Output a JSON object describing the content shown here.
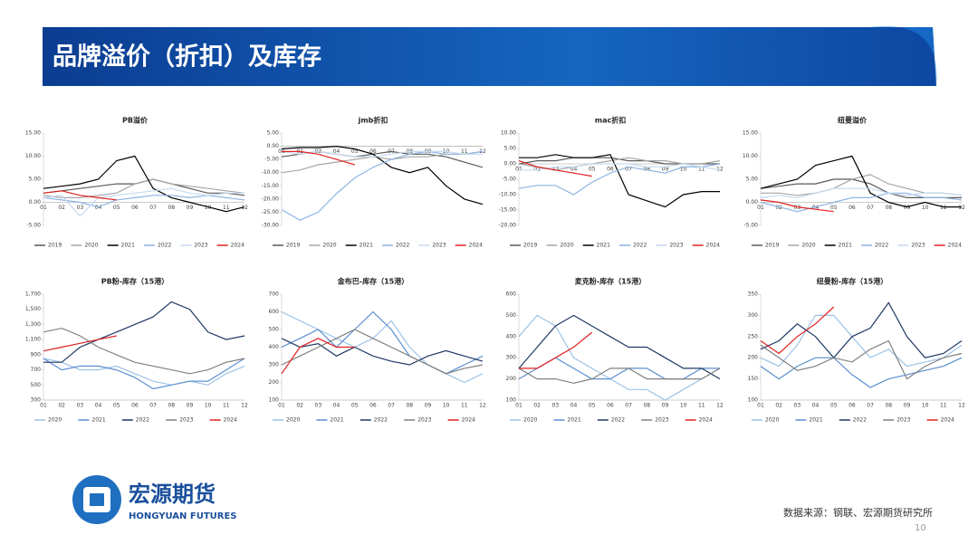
{
  "header": {
    "title": "品牌溢价（折扣）及库存"
  },
  "logo": {
    "name": "宏源期货",
    "english": "HONGYUAN FUTURES"
  },
  "footer": {
    "source": "数据来源：钢联、宏源期货研究所",
    "page": "10"
  },
  "chart_data": [
    {
      "type": "line",
      "title": "PB溢价",
      "categories": [
        "01",
        "02",
        "03",
        "04",
        "05",
        "06",
        "07",
        "08",
        "09",
        "10",
        "11",
        "12"
      ],
      "ylim": [
        -5,
        15
      ],
      "yticks": [
        {
          "value": -5,
          "label": "-5.00"
        },
        {
          "value": 0,
          "label": "0.00"
        },
        {
          "value": 5,
          "label": "5.00"
        },
        {
          "value": 10,
          "label": "10.00"
        },
        {
          "value": 15,
          "label": "15.00"
        }
      ],
      "series": [
        {
          "name": "2019",
          "color": "#595959",
          "values": [
            2,
            2.5,
            3,
            3.5,
            4,
            4,
            5,
            4,
            3,
            2,
            2,
            1.5
          ]
        },
        {
          "name": "2020",
          "color": "#a6a6a6",
          "values": [
            1.5,
            1,
            1,
            1.5,
            2,
            4,
            5,
            4,
            3.5,
            3,
            2.5,
            2
          ]
        },
        {
          "name": "2021",
          "color": "#000000",
          "values": [
            3,
            3.5,
            4,
            5,
            9,
            10,
            3,
            1,
            0,
            -1,
            -2,
            -1
          ]
        },
        {
          "name": "2022",
          "color": "#8eb4e3",
          "values": [
            1,
            0.5,
            0,
            -1,
            0.5,
            1,
            1.5,
            1.5,
            1,
            1.5,
            1,
            0.5
          ]
        },
        {
          "name": "2023",
          "color": "#c5d9f1",
          "values": [
            1,
            1.5,
            -3,
            1,
            1.5,
            2,
            2.5,
            3,
            2,
            1.5,
            2,
            2
          ]
        },
        {
          "name": "2024",
          "color": "#e02020",
          "values": [
            2,
            2.5,
            1.5,
            1,
            0.5,
            null,
            null,
            null,
            null,
            null,
            null,
            null
          ]
        }
      ]
    },
    {
      "type": "line",
      "title": "jmb折扣",
      "categories": [
        "01",
        "02",
        "03",
        "04",
        "05",
        "06",
        "07",
        "08",
        "09",
        "10",
        "11",
        "12"
      ],
      "ylim": [
        -30,
        5
      ],
      "yticks": [
        {
          "value": -30,
          "label": "-30.00"
        },
        {
          "value": -25,
          "label": "-25.00"
        },
        {
          "value": -20,
          "label": "-20.00"
        },
        {
          "value": -15,
          "label": "-15.00"
        },
        {
          "value": -10,
          "label": "-10.00"
        },
        {
          "value": -5,
          "label": "-5.00"
        },
        {
          "value": 0,
          "label": "0.00"
        },
        {
          "value": 5,
          "label": "5.00"
        }
      ],
      "series": [
        {
          "name": "2019",
          "color": "#595959",
          "values": [
            -4,
            -3,
            -2,
            -3,
            -4,
            -3,
            -2,
            -3,
            -3,
            -4,
            -6,
            -8
          ]
        },
        {
          "name": "2020",
          "color": "#a6a6a6",
          "values": [
            -10,
            -9,
            -7,
            -6,
            -5,
            -4,
            -5,
            -4,
            -4,
            -3,
            -3,
            -2
          ]
        },
        {
          "name": "2021",
          "color": "#000000",
          "values": [
            -1,
            -0.5,
            -0.5,
            0,
            -1,
            -3,
            -8,
            -10,
            -8,
            -15,
            -20,
            -22
          ]
        },
        {
          "name": "2022",
          "color": "#8eb4e3",
          "values": [
            -24,
            -28,
            -25,
            -18,
            -12,
            -8,
            -5,
            -3,
            -2,
            -3,
            -3,
            -2
          ]
        },
        {
          "name": "2023",
          "color": "#c5d9f1",
          "values": [
            -2,
            -3,
            -2,
            -3,
            -4,
            -4,
            -3,
            -2,
            -2,
            -2,
            -3,
            -3
          ]
        },
        {
          "name": "2024",
          "color": "#e02020",
          "values": [
            -2,
            -2,
            -3,
            -5,
            -7,
            null,
            null,
            null,
            null,
            null,
            null,
            null
          ]
        }
      ]
    },
    {
      "type": "line",
      "title": "mac折扣",
      "categories": [
        "01",
        "02",
        "03",
        "04",
        "05",
        "06",
        "07",
        "08",
        "09",
        "10",
        "11",
        "12"
      ],
      "ylim": [
        -20,
        10
      ],
      "yticks": [
        {
          "value": -20,
          "label": "-20.00"
        },
        {
          "value": -15,
          "label": "-15.00"
        },
        {
          "value": -10,
          "label": "-10.00"
        },
        {
          "value": -5,
          "label": "-5.00"
        },
        {
          "value": 0,
          "label": "0.00"
        },
        {
          "value": 5,
          "label": "5.00"
        },
        {
          "value": 10,
          "label": "10.00"
        }
      ],
      "series": [
        {
          "name": "2019",
          "color": "#595959",
          "values": [
            0,
            1,
            1,
            2,
            2,
            2,
            1,
            1,
            0,
            0,
            0,
            0
          ]
        },
        {
          "name": "2020",
          "color": "#a6a6a6",
          "values": [
            0,
            -1,
            -2,
            -1,
            0,
            1,
            2,
            1,
            1,
            0,
            0,
            1
          ]
        },
        {
          "name": "2021",
          "color": "#000000",
          "values": [
            2,
            2,
            3,
            2,
            2,
            3,
            -10,
            -12,
            -14,
            -10,
            -9,
            -9
          ]
        },
        {
          "name": "2022",
          "color": "#8eb4e3",
          "values": [
            -8,
            -7,
            -7,
            -10,
            -6,
            -3,
            -1,
            -2,
            -3,
            -1,
            -1,
            0
          ]
        },
        {
          "name": "2023",
          "color": "#c5d9f1",
          "values": [
            -2,
            -2,
            -1,
            -1,
            0,
            0,
            0,
            -1,
            -1,
            0,
            -1,
            -2
          ]
        },
        {
          "name": "2024",
          "color": "#e02020",
          "values": [
            1,
            -1,
            -2,
            -3,
            -4,
            null,
            null,
            null,
            null,
            null,
            null,
            null
          ]
        }
      ]
    },
    {
      "type": "line",
      "title": "纽曼溢价",
      "categories": [
        "01",
        "02",
        "03",
        "04",
        "05",
        "06",
        "07",
        "08",
        "09",
        "10",
        "11",
        "12"
      ],
      "ylim": [
        -5,
        15
      ],
      "yticks": [
        {
          "value": -5,
          "label": "-5.00"
        },
        {
          "value": 0,
          "label": "0.00"
        },
        {
          "value": 5,
          "label": "5.00"
        },
        {
          "value": 10,
          "label": "10.00"
        },
        {
          "value": 15,
          "label": "15.00"
        }
      ],
      "series": [
        {
          "name": "2019",
          "color": "#595959",
          "values": [
            3,
            3.5,
            4,
            4,
            5,
            5,
            4,
            2,
            1,
            1,
            1,
            1
          ]
        },
        {
          "name": "2020",
          "color": "#a6a6a6",
          "values": [
            2,
            2,
            1.5,
            2,
            3,
            5,
            6,
            4,
            3,
            2,
            2,
            1.5
          ]
        },
        {
          "name": "2021",
          "color": "#000000",
          "values": [
            3,
            4,
            5,
            8,
            9,
            10,
            2,
            0,
            -1,
            0,
            -1,
            -1
          ]
        },
        {
          "name": "2022",
          "color": "#8eb4e3",
          "values": [
            0,
            -1,
            -2,
            -1,
            0,
            1,
            1,
            2,
            2,
            1,
            1,
            0.5
          ]
        },
        {
          "name": "2023",
          "color": "#c5d9f1",
          "values": [
            1,
            1.5,
            1,
            2,
            3,
            3,
            3,
            2,
            1.5,
            2,
            2,
            1.5
          ]
        },
        {
          "name": "2024",
          "color": "#e02020",
          "values": [
            0.5,
            0,
            -1,
            -1.5,
            -2,
            null,
            null,
            null,
            null,
            null,
            null,
            null
          ]
        }
      ]
    },
    {
      "type": "line",
      "title": "PB粉-库存（15港）",
      "categories": [
        "01",
        "02",
        "03",
        "04",
        "05",
        "06",
        "07",
        "08",
        "09",
        "10",
        "11",
        "12"
      ],
      "ylim": [
        300,
        1700
      ],
      "yticks": [
        300,
        500,
        700,
        900,
        {
          "value": 1100,
          "label": "1,100"
        },
        {
          "value": 1300,
          "label": "1,300"
        },
        {
          "value": 1500,
          "label": "1,500"
        },
        {
          "value": 1700,
          "label": "1,700"
        }
      ],
      "series": [
        {
          "name": "2020",
          "color": "#9dc3e6",
          "values": [
            850,
            800,
            700,
            700,
            750,
            650,
            550,
            500,
            550,
            500,
            650,
            750
          ]
        },
        {
          "name": "2021",
          "color": "#5b8fd0",
          "values": [
            850,
            700,
            750,
            750,
            700,
            600,
            450,
            500,
            550,
            550,
            700,
            850
          ]
        },
        {
          "name": "2022",
          "color": "#1f3864",
          "values": [
            800,
            800,
            1000,
            1100,
            1200,
            1300,
            1400,
            1600,
            1500,
            1200,
            1100,
            1150
          ]
        },
        {
          "name": "2023",
          "color": "#808080",
          "values": [
            1200,
            1250,
            1150,
            1000,
            900,
            800,
            750,
            700,
            650,
            700,
            800,
            850
          ]
        },
        {
          "name": "2024",
          "color": "#e02020",
          "values": [
            950,
            1000,
            1050,
            1100,
            1150,
            null,
            null,
            null,
            null,
            null,
            null,
            null
          ]
        }
      ]
    },
    {
      "type": "line",
      "title": "金布巴-库存（15港）",
      "categories": [
        "01",
        "02",
        "03",
        "04",
        "05",
        "06",
        "07",
        "08",
        "09",
        "10",
        "11",
        "12"
      ],
      "ylim": [
        100,
        700
      ],
      "yticks": [
        100,
        200,
        300,
        400,
        500,
        600,
        700
      ],
      "series": [
        {
          "name": "2020",
          "color": "#9dc3e6",
          "values": [
            600,
            550,
            500,
            450,
            400,
            450,
            550,
            400,
            300,
            250,
            200,
            250
          ]
        },
        {
          "name": "2021",
          "color": "#5b8fd0",
          "values": [
            400,
            450,
            500,
            400,
            500,
            600,
            500,
            350,
            300,
            250,
            300,
            350
          ]
        },
        {
          "name": "2022",
          "color": "#1f3864",
          "values": [
            450,
            400,
            420,
            350,
            400,
            350,
            320,
            300,
            350,
            380,
            350,
            320
          ]
        },
        {
          "name": "2023",
          "color": "#808080",
          "values": [
            300,
            350,
            400,
            450,
            500,
            450,
            400,
            350,
            300,
            250,
            280,
            300
          ]
        },
        {
          "name": "2024",
          "color": "#e02020",
          "values": [
            250,
            400,
            450,
            400,
            400,
            null,
            null,
            null,
            null,
            null,
            null,
            null
          ]
        }
      ]
    },
    {
      "type": "line",
      "title": "麦克粉-库存（15港）",
      "categories": [
        "01",
        "02",
        "03",
        "04",
        "05",
        "06",
        "07",
        "08",
        "09",
        "10",
        "11",
        "12"
      ],
      "ylim": [
        100,
        600
      ],
      "yticks": [
        100,
        200,
        300,
        400,
        500,
        600
      ],
      "series": [
        {
          "name": "2020",
          "color": "#9dc3e6",
          "values": [
            400,
            500,
            450,
            300,
            250,
            200,
            150,
            150,
            100,
            150,
            200,
            250
          ]
        },
        {
          "name": "2021",
          "color": "#5b8fd0",
          "values": [
            200,
            250,
            300,
            250,
            200,
            200,
            250,
            250,
            200,
            200,
            250,
            250
          ]
        },
        {
          "name": "2022",
          "color": "#1f3864",
          "values": [
            250,
            350,
            450,
            500,
            450,
            400,
            350,
            350,
            300,
            250,
            250,
            200
          ]
        },
        {
          "name": "2023",
          "color": "#808080",
          "values": [
            250,
            200,
            200,
            180,
            200,
            250,
            250,
            200,
            200,
            200,
            200,
            250
          ]
        },
        {
          "name": "2024",
          "color": "#e02020",
          "values": [
            250,
            250,
            300,
            350,
            420,
            null,
            null,
            null,
            null,
            null,
            null,
            null
          ]
        }
      ]
    },
    {
      "type": "line",
      "title": "纽曼粉-库存（15港）",
      "categories": [
        "01",
        "02",
        "03",
        "04",
        "05",
        "06",
        "07",
        "08",
        "09",
        "10",
        "11",
        "12"
      ],
      "ylim": [
        100,
        350
      ],
      "yticks": [
        100,
        150,
        200,
        250,
        300,
        350
      ],
      "series": [
        {
          "name": "2020",
          "color": "#9dc3e6",
          "values": [
            200,
            180,
            230,
            300,
            300,
            250,
            200,
            220,
            180,
            190,
            200,
            230
          ]
        },
        {
          "name": "2021",
          "color": "#5b8fd0",
          "values": [
            180,
            150,
            180,
            200,
            200,
            160,
            130,
            150,
            160,
            170,
            180,
            200
          ]
        },
        {
          "name": "2022",
          "color": "#1f3864",
          "values": [
            220,
            240,
            280,
            250,
            200,
            250,
            270,
            330,
            250,
            200,
            210,
            240
          ]
        },
        {
          "name": "2023",
          "color": "#808080",
          "values": [
            230,
            200,
            170,
            180,
            200,
            190,
            220,
            240,
            150,
            180,
            200,
            210
          ]
        },
        {
          "name": "2024",
          "color": "#e02020",
          "values": [
            240,
            210,
            250,
            280,
            320,
            null,
            null,
            null,
            null,
            null,
            null,
            null
          ]
        }
      ]
    }
  ]
}
